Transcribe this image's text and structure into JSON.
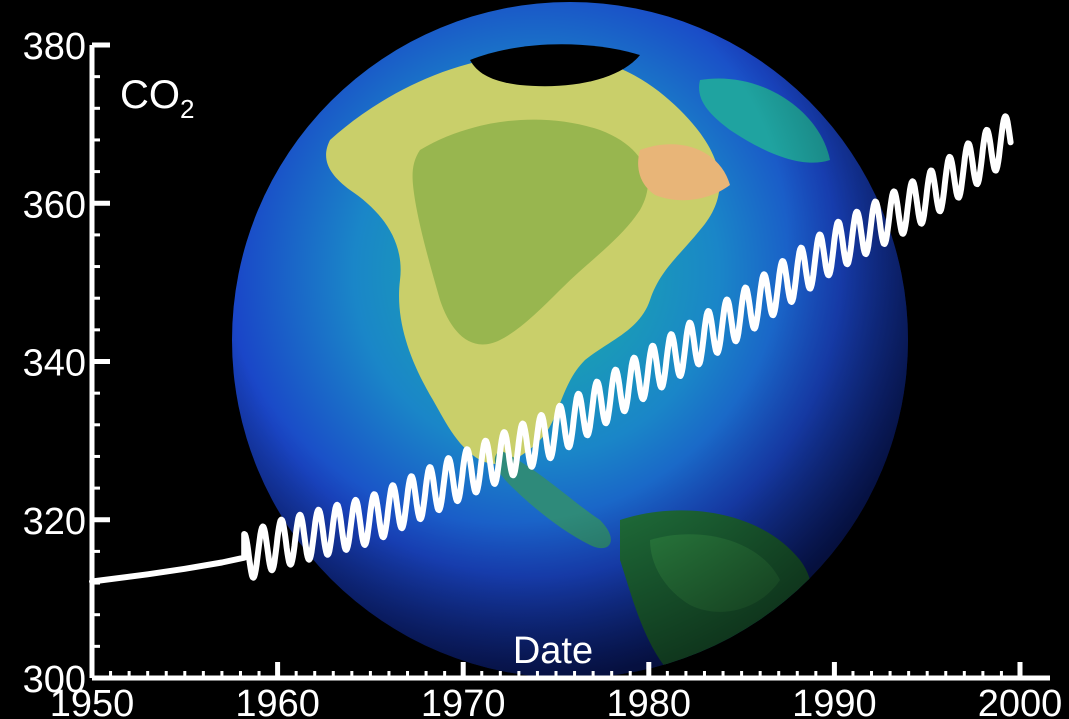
{
  "chart_data": {
    "type": "line",
    "title": "",
    "xlabel": "Date",
    "ylabel_main": "CO",
    "ylabel_sub": "2",
    "xlim": [
      1950,
      2000
    ],
    "ylim": [
      300,
      380
    ],
    "x_ticks": [
      "1950",
      "1960",
      "1970",
      "1980",
      "1990",
      "2000"
    ],
    "y_ticks": [
      "300",
      "320",
      "340",
      "360",
      "380"
    ],
    "series": [
      {
        "x": [
          1950,
          1953,
          1955,
          1957,
          1958.2
        ],
        "values": [
          312.2,
          313.1,
          313.8,
          314.6,
          315.2
        ],
        "seasonal_amplitude": 0,
        "start_year": 1958.2,
        "end_year": 1999.5,
        "annual_means": [
          [
            1958.2,
            315.2
          ],
          [
            1960,
            316.9
          ],
          [
            1965,
            320.0
          ],
          [
            1970,
            325.7
          ],
          [
            1975,
            331.1
          ],
          [
            1980,
            338.7
          ],
          [
            1985,
            346.0
          ],
          [
            1990,
            354.4
          ],
          [
            1995,
            360.8
          ],
          [
            1999.5,
            368.5
          ]
        ],
        "amplitude": 3.0,
        "color": "#ffffff"
      }
    ],
    "background_image": "earth-globe"
  },
  "colors": {
    "background": "#000000",
    "axis": "#ffffff",
    "line": "#ffffff"
  }
}
